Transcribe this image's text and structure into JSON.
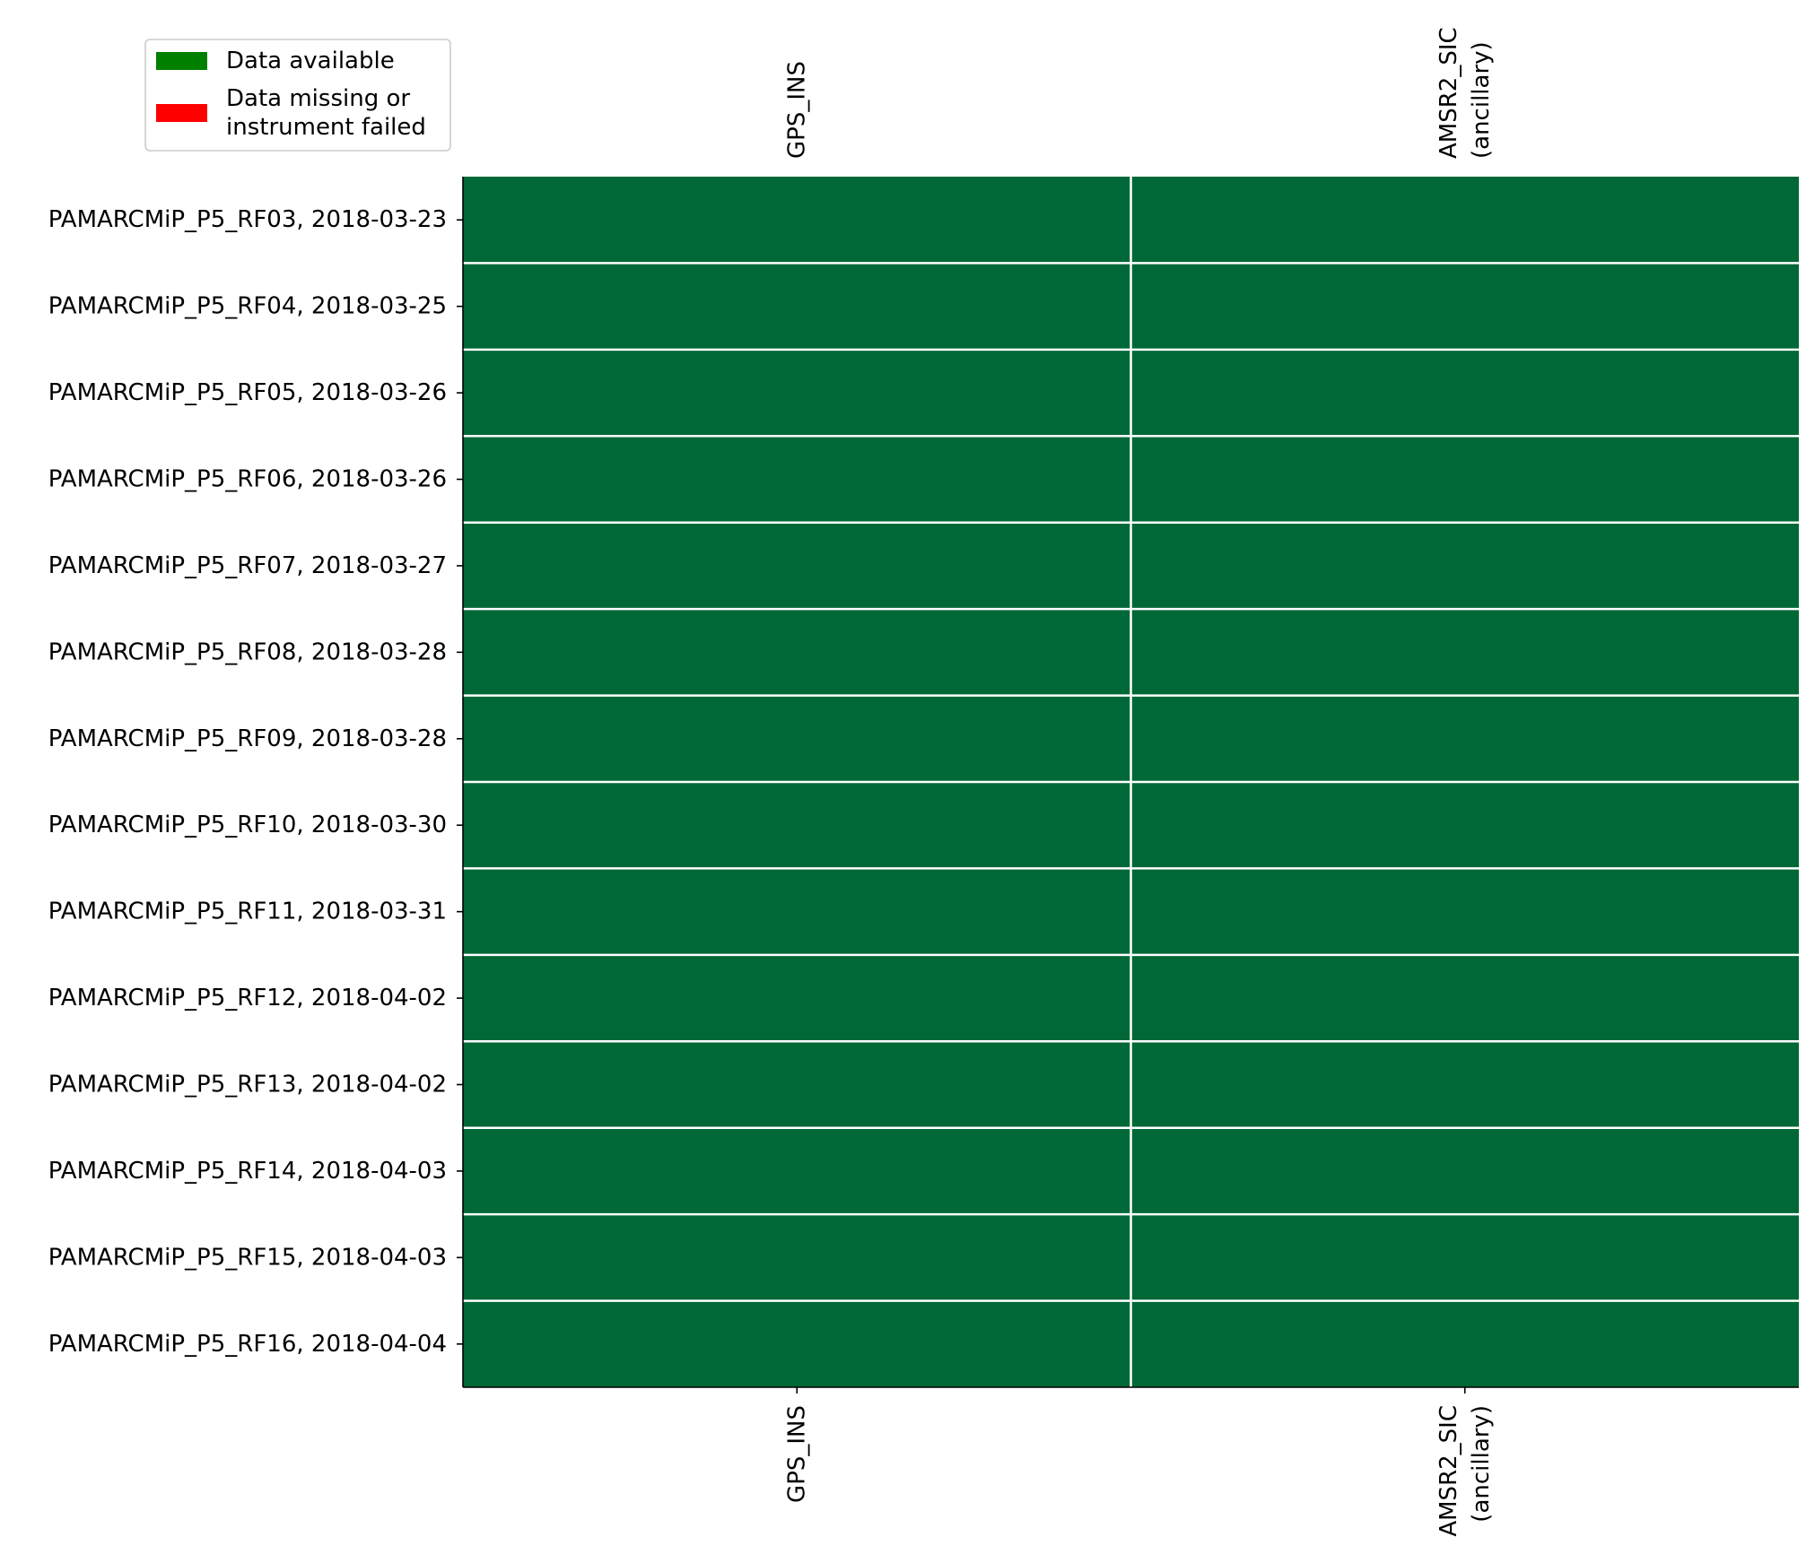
{
  "chart_data": {
    "type": "heatmap",
    "rows": [
      "PAMARCMiP_P5_RF03, 2018-03-23",
      "PAMARCMiP_P5_RF04, 2018-03-25",
      "PAMARCMiP_P5_RF05, 2018-03-26",
      "PAMARCMiP_P5_RF06, 2018-03-26",
      "PAMARCMiP_P5_RF07, 2018-03-27",
      "PAMARCMiP_P5_RF08, 2018-03-28",
      "PAMARCMiP_P5_RF09, 2018-03-28",
      "PAMARCMiP_P5_RF10, 2018-03-30",
      "PAMARCMiP_P5_RF11, 2018-03-31",
      "PAMARCMiP_P5_RF12, 2018-04-02",
      "PAMARCMiP_P5_RF13, 2018-04-02",
      "PAMARCMiP_P5_RF14, 2018-04-03",
      "PAMARCMiP_P5_RF15, 2018-04-03",
      "PAMARCMiP_P5_RF16, 2018-04-04"
    ],
    "columns": [
      [
        "GPS_INS"
      ],
      [
        "AMSR2_SIC",
        "(ancillary)"
      ]
    ],
    "values": [
      [
        1,
        1
      ],
      [
        1,
        1
      ],
      [
        1,
        1
      ],
      [
        1,
        1
      ],
      [
        1,
        1
      ],
      [
        1,
        1
      ],
      [
        1,
        1
      ],
      [
        1,
        1
      ],
      [
        1,
        1
      ],
      [
        1,
        1
      ],
      [
        1,
        1
      ],
      [
        1,
        1
      ],
      [
        1,
        1
      ],
      [
        1,
        1
      ]
    ],
    "value_colors": {
      "1": "#006837",
      "0": "#ff0000"
    },
    "legend": {
      "placement": "top-left",
      "entries": [
        {
          "lines": [
            "Data available"
          ],
          "color": "#008000"
        },
        {
          "lines": [
            "Data missing or",
            "instrument failed"
          ],
          "color": "#ff0000"
        }
      ]
    },
    "column_labels_top": true,
    "column_labels_bottom": true,
    "grid": true
  }
}
